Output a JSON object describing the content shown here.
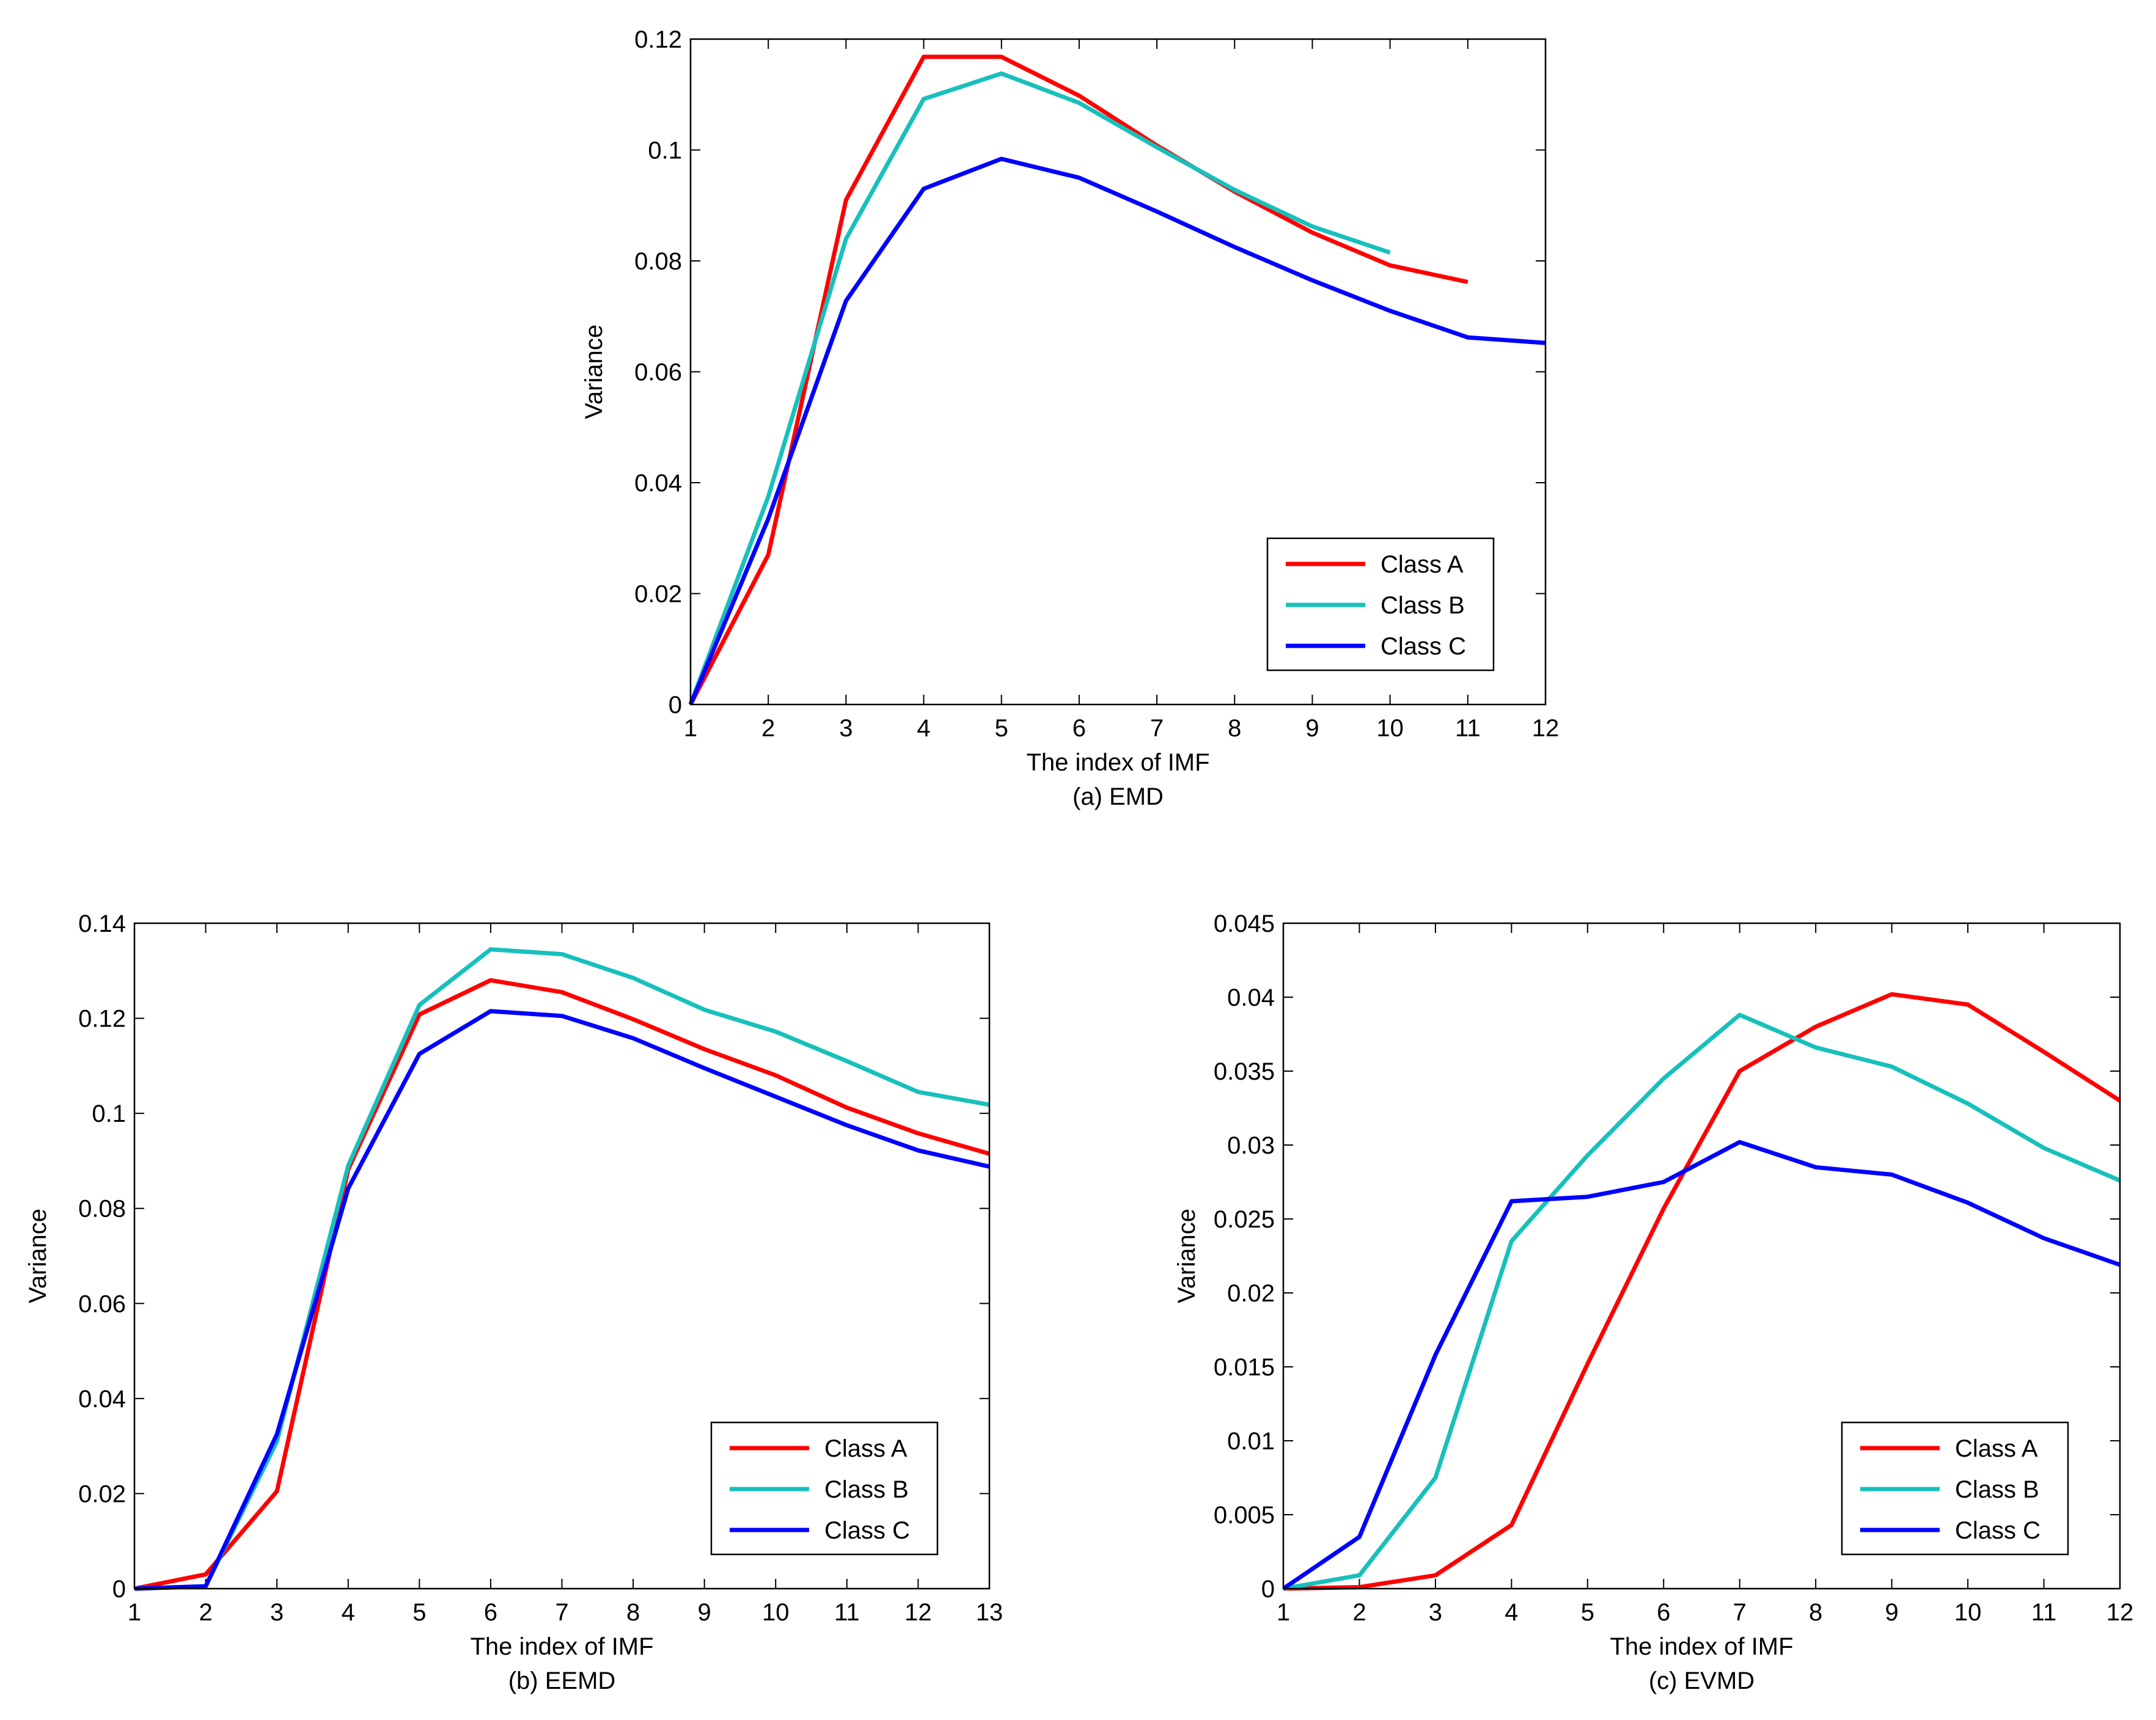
{
  "chart_data": [
    {
      "type": "line",
      "caption": "(a) EMD",
      "xlabel": "The index of IMF",
      "ylabel": "Variance",
      "xlim": [
        1,
        12
      ],
      "ylim": [
        0,
        0.12
      ],
      "xticks": [
        "1",
        "2",
        "3",
        "4",
        "5",
        "6",
        "7",
        "8",
        "9",
        "10",
        "11",
        "12"
      ],
      "yticks": [
        "0",
        "0.02",
        "0.04",
        "0.06",
        "0.08",
        "0.1",
        "0.12"
      ],
      "legend_position": "bottom-right",
      "series": [
        {
          "name": "Class A",
          "color": "#ff0000",
          "x": [
            1,
            2,
            3,
            4,
            5,
            6,
            7,
            8,
            9,
            10,
            11
          ],
          "values": [
            0,
            0.027,
            0.091,
            0.1168,
            0.1168,
            0.1098,
            0.1008,
            0.0925,
            0.0851,
            0.0792,
            0.0762
          ]
        },
        {
          "name": "Class B",
          "color": "#17c0bc",
          "x": [
            1,
            2,
            3,
            4,
            5,
            6,
            7,
            8,
            9,
            10
          ],
          "values": [
            0,
            0.0375,
            0.084,
            0.1092,
            0.1138,
            0.1085,
            0.1005,
            0.0928,
            0.0862,
            0.0815
          ]
        },
        {
          "name": "Class C",
          "color": "#0000ff",
          "x": [
            1,
            2,
            3,
            4,
            5,
            6,
            7,
            8,
            9,
            10,
            11,
            12
          ],
          "values": [
            0,
            0.0335,
            0.0728,
            0.093,
            0.0984,
            0.095,
            0.0889,
            0.0825,
            0.0765,
            0.071,
            0.0662,
            0.0652
          ]
        }
      ]
    },
    {
      "type": "line",
      "caption": "(b) EEMD",
      "xlabel": "The index of IMF",
      "ylabel": "Variance",
      "xlim": [
        1,
        13
      ],
      "ylim": [
        0,
        0.14
      ],
      "xticks": [
        "1",
        "2",
        "3",
        "4",
        "5",
        "6",
        "7",
        "8",
        "9",
        "10",
        "11",
        "12",
        "13"
      ],
      "yticks": [
        "0",
        "0.02",
        "0.04",
        "0.06",
        "0.08",
        "0.1",
        "0.12",
        "0.14"
      ],
      "legend_position": "bottom-right",
      "series": [
        {
          "name": "Class A",
          "color": "#ff0000",
          "x": [
            1,
            2,
            3,
            4,
            5,
            6,
            7,
            8,
            9,
            10,
            11,
            12,
            13
          ],
          "values": [
            0,
            0.003,
            0.0205,
            0.0882,
            0.1208,
            0.128,
            0.1255,
            0.1198,
            0.1135,
            0.108,
            0.1012,
            0.0958,
            0.0915
          ]
        },
        {
          "name": "Class B",
          "color": "#17c0bc",
          "x": [
            1,
            2,
            3,
            4,
            5,
            6,
            7,
            8,
            9,
            10,
            11,
            12,
            13
          ],
          "values": [
            0,
            0.0005,
            0.031,
            0.089,
            0.1228,
            0.1345,
            0.1335,
            0.1285,
            0.1218,
            0.1172,
            0.111,
            0.1045,
            0.1018
          ]
        },
        {
          "name": "Class C",
          "color": "#0000ff",
          "x": [
            1,
            2,
            3,
            4,
            5,
            6,
            7,
            8,
            9,
            10,
            11,
            12,
            13
          ],
          "values": [
            0,
            0.0005,
            0.0325,
            0.0842,
            0.1125,
            0.1215,
            0.1205,
            0.1158,
            0.1095,
            0.1035,
            0.0975,
            0.0922,
            0.0888
          ]
        }
      ]
    },
    {
      "type": "line",
      "caption": "(c) EVMD",
      "xlabel": "The index of IMF",
      "ylabel": "Variance",
      "xlim": [
        1,
        12
      ],
      "ylim": [
        0,
        0.045
      ],
      "xticks": [
        "1",
        "2",
        "3",
        "4",
        "5",
        "6",
        "7",
        "8",
        "9",
        "10",
        "11",
        "12"
      ],
      "yticks": [
        "0",
        "0.005",
        "0.01",
        "0.015",
        "0.02",
        "0.025",
        "0.03",
        "0.035",
        "0.04",
        "0.045"
      ],
      "legend_position": "bottom-right",
      "series": [
        {
          "name": "Class A",
          "color": "#ff0000",
          "x": [
            1,
            2,
            3,
            4,
            5,
            6,
            7,
            8,
            9,
            10,
            11,
            12
          ],
          "values": [
            0,
            0.0001,
            0.0009,
            0.0043,
            0.0152,
            0.0257,
            0.035,
            0.038,
            0.0402,
            0.0395,
            0.0363,
            0.033
          ]
        },
        {
          "name": "Class B",
          "color": "#17c0bc",
          "x": [
            1,
            2,
            3,
            4,
            5,
            6,
            7,
            8,
            9,
            10,
            11,
            12
          ],
          "values": [
            0,
            0.0009,
            0.0075,
            0.0235,
            0.0293,
            0.0345,
            0.0388,
            0.0366,
            0.0353,
            0.0328,
            0.0298,
            0.0276
          ]
        },
        {
          "name": "Class C",
          "color": "#0000ff",
          "x": [
            1,
            2,
            3,
            4,
            5,
            6,
            7,
            8,
            9,
            10,
            11,
            12
          ],
          "values": [
            0,
            0.0035,
            0.0158,
            0.0262,
            0.0265,
            0.0275,
            0.0302,
            0.0285,
            0.028,
            0.0261,
            0.0237,
            0.0219
          ]
        }
      ]
    }
  ]
}
